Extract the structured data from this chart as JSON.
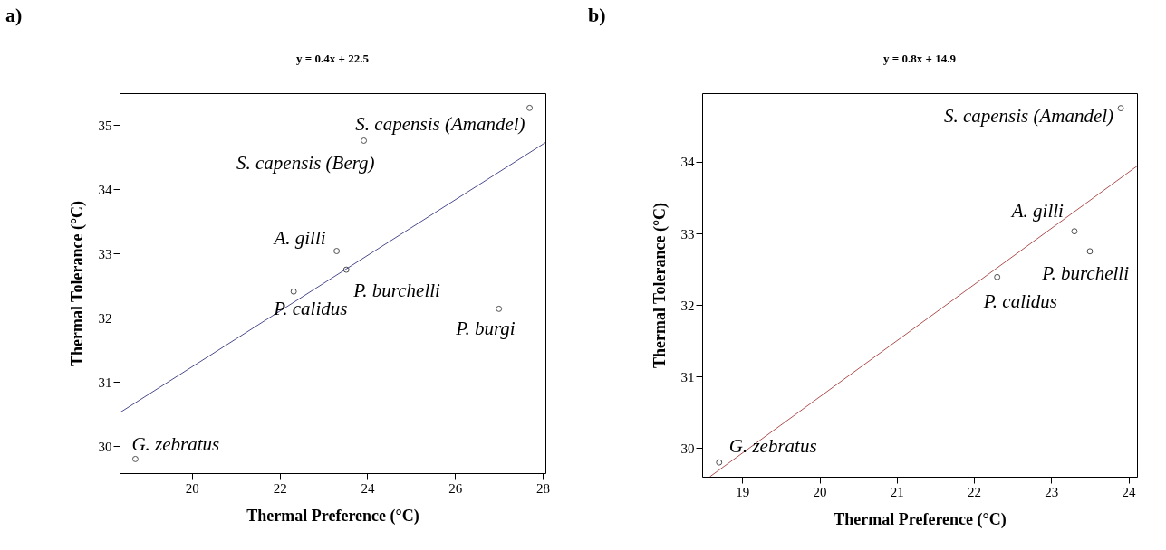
{
  "chart_data": [
    {
      "type": "scatter",
      "title": "a)",
      "xlabel": "Thermal Preference (°C)",
      "ylabel": "Thermal Tolerance (°C)",
      "annotations": [
        "y = 0.4x + 22.5",
        {
          "text": "G. zebratus",
          "x": 18.71,
          "y": 29.8
        },
        {
          "text": "P. calidus",
          "x": 22.32,
          "y": 32.41
        },
        {
          "text": "A. gilli",
          "x": 23.3,
          "y": 33.04
        },
        {
          "text": "P. burchelli",
          "x": 23.52,
          "y": 32.75
        },
        {
          "text": "S. capensis (Berg)",
          "x": 23.92,
          "y": 34.76
        },
        {
          "text": "S. capensis (Amandel)",
          "x": 27.7,
          "y": 35.27
        },
        {
          "text": "P. burgi",
          "x": 27.0,
          "y": 32.14
        }
      ],
      "series": [
        {
          "color": "#000000",
          "marker": "circle",
          "x": [
            18.71,
            22.32,
            23.3,
            23.52,
            23.92,
            27.7,
            27.0
          ],
          "values": [
            29.8,
            32.41,
            33.04,
            32.75,
            34.76,
            35.27,
            32.14
          ]
        },
        {
          "type": "line",
          "color": "#4b4b8f",
          "x": [
            18.35,
            28.06
          ],
          "values": [
            30.52,
            34.73
          ]
        }
      ],
      "xlim": [
        18.35,
        28.06
      ],
      "ylim": [
        29.58,
        35.5
      ],
      "xticks": [
        20,
        22,
        24,
        26,
        28
      ],
      "yticks": [
        30,
        31,
        32,
        33,
        34,
        35
      ],
      "grid": false
    },
    {
      "type": "scatter",
      "title": "b)",
      "xlabel": "Thermal Preference (°C)",
      "ylabel": "Thermal Tolerance (°C)",
      "annotations": [
        "y = 0.8x + 14.9",
        {
          "text": "S. capensis (Amandel)",
          "x": 23.9,
          "y": 34.75
        },
        {
          "text": "A. gilli",
          "x": 23.3,
          "y": 33.03
        },
        {
          "text": "P. burchelli",
          "x": 23.5,
          "y": 32.75
        },
        {
          "text": "P. calidus",
          "x": 22.3,
          "y": 32.39
        },
        {
          "text": "G. zebratus",
          "x": 18.7,
          "y": 29.8
        }
      ],
      "series": [
        {
          "color": "#000000",
          "marker": "circle",
          "x": [
            18.7,
            22.3,
            23.3,
            23.5,
            23.9
          ],
          "values": [
            29.8,
            32.39,
            33.03,
            32.75,
            34.75
          ]
        },
        {
          "type": "line",
          "color": "#b05050",
          "x": [
            18.58,
            24.11
          ],
          "values": [
            29.6,
            33.94
          ]
        }
      ],
      "xlim": [
        18.48,
        24.11
      ],
      "ylim": [
        29.6,
        34.96
      ],
      "xticks": [
        19,
        20,
        21,
        22,
        23,
        24
      ],
      "yticks": [
        30,
        31,
        32,
        33,
        34
      ],
      "grid": false
    }
  ]
}
